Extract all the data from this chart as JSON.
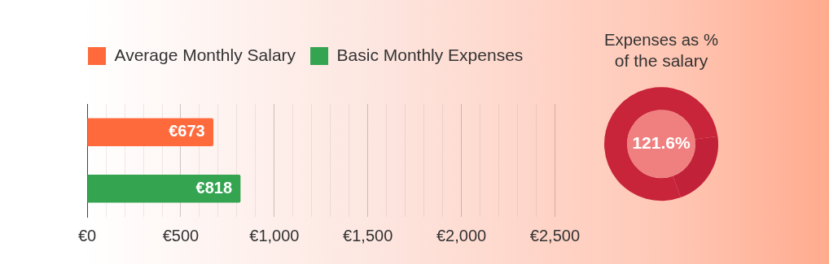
{
  "chart_data": [
    {
      "type": "bar",
      "orientation": "horizontal",
      "categories": [
        null,
        null
      ],
      "legend": "top left",
      "grid": "x",
      "series": [
        {
          "name": "Average Monthly Salary",
          "color": "#ff6a3d",
          "values": [
            673,
            null
          ],
          "value_labels": [
            "€673",
            null
          ]
        },
        {
          "name": "Basic Monthly Expenses",
          "color": "#34a451",
          "values": [
            null,
            818
          ],
          "value_labels": [
            null,
            "€818"
          ]
        }
      ],
      "xlim": [
        0,
        2500
      ],
      "xticks": [
        {
          "value": 0,
          "label": "€0"
        },
        {
          "value": 100,
          "label": null
        },
        {
          "value": 200,
          "label": null
        },
        {
          "value": 300,
          "label": null
        },
        {
          "value": 400,
          "label": null
        },
        {
          "value": 500,
          "label": "€500"
        },
        {
          "value": 600,
          "label": null
        },
        {
          "value": 700,
          "label": null
        },
        {
          "value": 800,
          "label": null
        },
        {
          "value": 900,
          "label": null
        },
        {
          "value": 1000,
          "label": "€1,000"
        },
        {
          "value": 1100,
          "label": null
        },
        {
          "value": 1200,
          "label": null
        },
        {
          "value": 1300,
          "label": null
        },
        {
          "value": 1400,
          "label": null
        },
        {
          "value": 1500,
          "label": "€1,500"
        },
        {
          "value": 1600,
          "label": null
        },
        {
          "value": 1700,
          "label": null
        },
        {
          "value": 1800,
          "label": null
        },
        {
          "value": 1900,
          "label": null
        },
        {
          "value": 2000,
          "label": "€2,000"
        },
        {
          "value": 2100,
          "label": null
        },
        {
          "value": 2200,
          "label": null
        },
        {
          "value": 2300,
          "label": null
        },
        {
          "value": 2400,
          "label": null
        },
        {
          "value": 2500,
          "label": "€2,500"
        }
      ]
    },
    {
      "type": "donut",
      "title": "Expenses as %\nof the salary",
      "categories": [
        null,
        null
      ],
      "values": [
        78.4,
        21.6
      ],
      "colors": [
        "#c8243a",
        "#c1223a"
      ],
      "annotations": [
        "121.6%"
      ]
    }
  ]
}
